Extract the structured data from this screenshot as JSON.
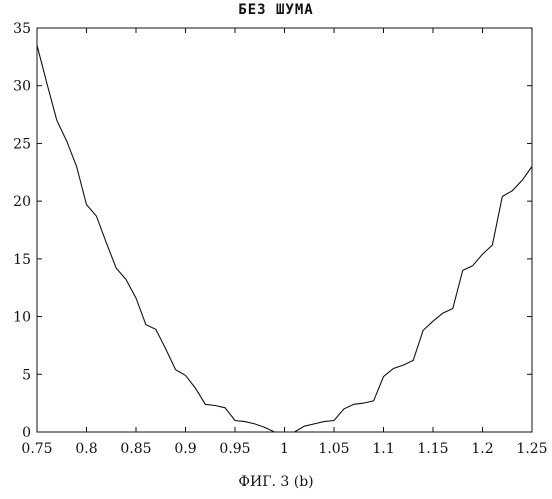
{
  "chart_data": {
    "type": "line",
    "title": "БЕЗ ШУМА",
    "caption": "ФИГ. 3 (b)",
    "xlabel": "",
    "ylabel": "",
    "xlim": [
      0.75,
      1.25
    ],
    "ylim": [
      0,
      35
    ],
    "grid": false,
    "xticks": [
      0.75,
      0.8,
      0.85,
      0.9,
      0.95,
      1,
      1.05,
      1.1,
      1.15,
      1.2,
      1.25
    ],
    "xtick_labels": [
      "0.75",
      "0.8",
      "0.85",
      "0.9",
      "0.95",
      "1",
      "1.05",
      "1.1",
      "1.15",
      "1.2",
      "1.25"
    ],
    "yticks": [
      0,
      5,
      10,
      15,
      20,
      25,
      30,
      35
    ],
    "ytick_labels": [
      "0",
      "5",
      "10",
      "15",
      "20",
      "25",
      "30",
      "35"
    ],
    "series": [
      {
        "x": [
          0.75,
          0.76,
          0.77,
          0.78,
          0.79,
          0.8,
          0.81,
          0.82,
          0.83,
          0.84,
          0.85,
          0.86,
          0.87,
          0.88,
          0.89,
          0.9,
          0.91,
          0.92,
          0.93,
          0.94,
          0.95,
          0.96,
          0.97,
          0.98,
          0.99,
          1.0,
          1.01,
          1.02,
          1.03,
          1.04,
          1.05,
          1.06,
          1.07,
          1.08,
          1.09,
          1.1,
          1.11,
          1.12,
          1.13,
          1.14,
          1.15,
          1.16,
          1.17,
          1.18,
          1.19,
          1.2,
          1.21,
          1.22,
          1.23,
          1.24,
          1.25
        ],
        "y": [
          33.5,
          30.2,
          27.0,
          25.2,
          23.0,
          19.7,
          18.7,
          16.4,
          14.2,
          13.2,
          11.6,
          9.3,
          8.9,
          7.2,
          5.4,
          4.9,
          3.8,
          2.4,
          2.3,
          2.1,
          1.0,
          0.9,
          0.7,
          0.4,
          0.0,
          null,
          0.0,
          0.5,
          0.7,
          0.9,
          1.0,
          2.0,
          2.4,
          2.5,
          2.7,
          4.8,
          5.5,
          5.8,
          6.2,
          8.8,
          9.6,
          10.3,
          10.7,
          14.0,
          14.4,
          15.4,
          16.2,
          20.4,
          20.9,
          21.8,
          23.0
        ]
      }
    ]
  }
}
